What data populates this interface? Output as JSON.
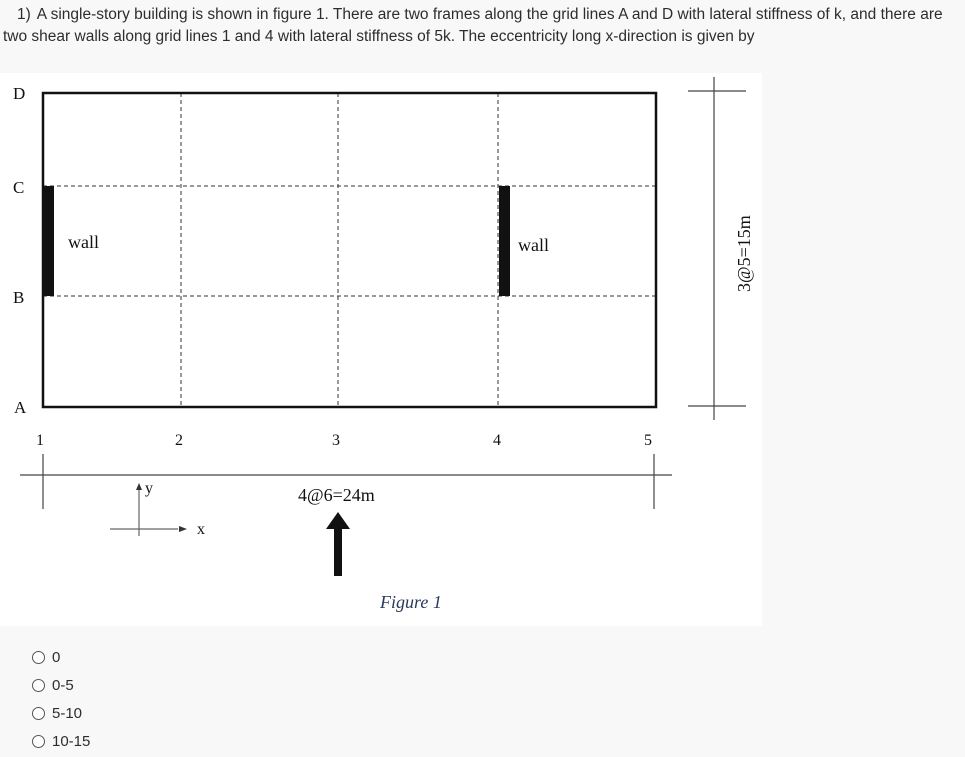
{
  "question": {
    "number": "1)",
    "text": "A single-story building is shown in figure 1. There are two frames along the grid lines A and D with lateral stiffness of k, and there are two shear walls along grid lines 1 and 4 with lateral stiffness of 5k. The eccentricity long x-direction is given by"
  },
  "figure": {
    "row_labels": [
      "D",
      "C",
      "B",
      "A"
    ],
    "column_labels": [
      "1",
      "2",
      "3",
      "4",
      "5"
    ],
    "wall_labels": [
      "wall",
      "wall"
    ],
    "x_dimension": "4@6=24m",
    "y_dimension": "3@5=15m",
    "axis_x": "x",
    "axis_y": "y",
    "caption": "Figure 1"
  },
  "options": [
    {
      "label": "0"
    },
    {
      "label": "0-5"
    },
    {
      "label": "5-10"
    },
    {
      "label": "10-15"
    }
  ]
}
